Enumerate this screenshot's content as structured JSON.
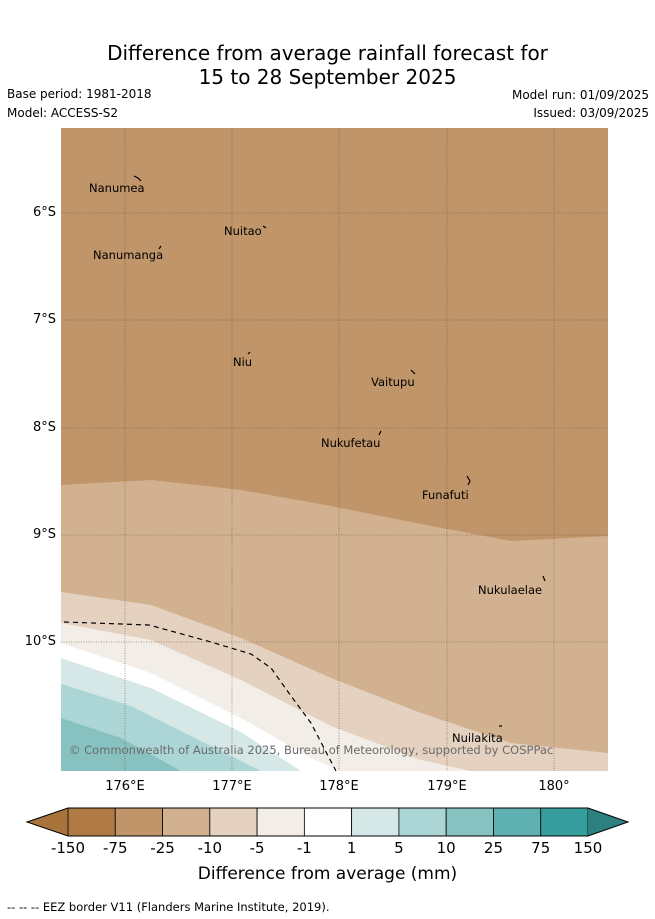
{
  "title_line1": "Difference from average rainfall forecast for",
  "title_line2": "15 to 28 September 2025",
  "base_period": "Base period: 1981-2018",
  "model": "Model: ACCESS-S2",
  "model_run": "Model run: 01/09/2025",
  "issued": "Issued: 03/09/2025",
  "lat_labels": [
    "6°S",
    "7°S",
    "8°S",
    "9°S",
    "10°S"
  ],
  "lon_labels": [
    "176°E",
    "177°E",
    "178°E",
    "179°E",
    "180°"
  ],
  "places": [
    "Nanumea",
    "Nuitao",
    "Nanumanga",
    "Niu",
    "Vaitupu",
    "Nukufetau",
    "Funafuti",
    "Nukulaelae",
    "Nuilakita"
  ],
  "copyright": "© Commonwealth of Australia 2025, Bureau of Meteorology, supported by COSPPac",
  "colorbar": {
    "ticks": [
      "-150",
      "-75",
      "-25",
      "-10",
      "-5",
      "-1",
      "1",
      "5",
      "10",
      "25",
      "75",
      "150"
    ],
    "colors": [
      "#a8743c",
      "#b07a45",
      "#c1956a",
      "#d2b190",
      "#e4d1c0",
      "#f2ede7",
      "#ffffff",
      "#d5e8e7",
      "#acd6d5",
      "#87c2c1",
      "#5fb0b0",
      "#369d9d",
      "#2d8080"
    ],
    "label": "Difference from average (mm)"
  },
  "footer": "-- -- -- EEZ border V11 (Flanders Marine Institute, 2019)."
}
